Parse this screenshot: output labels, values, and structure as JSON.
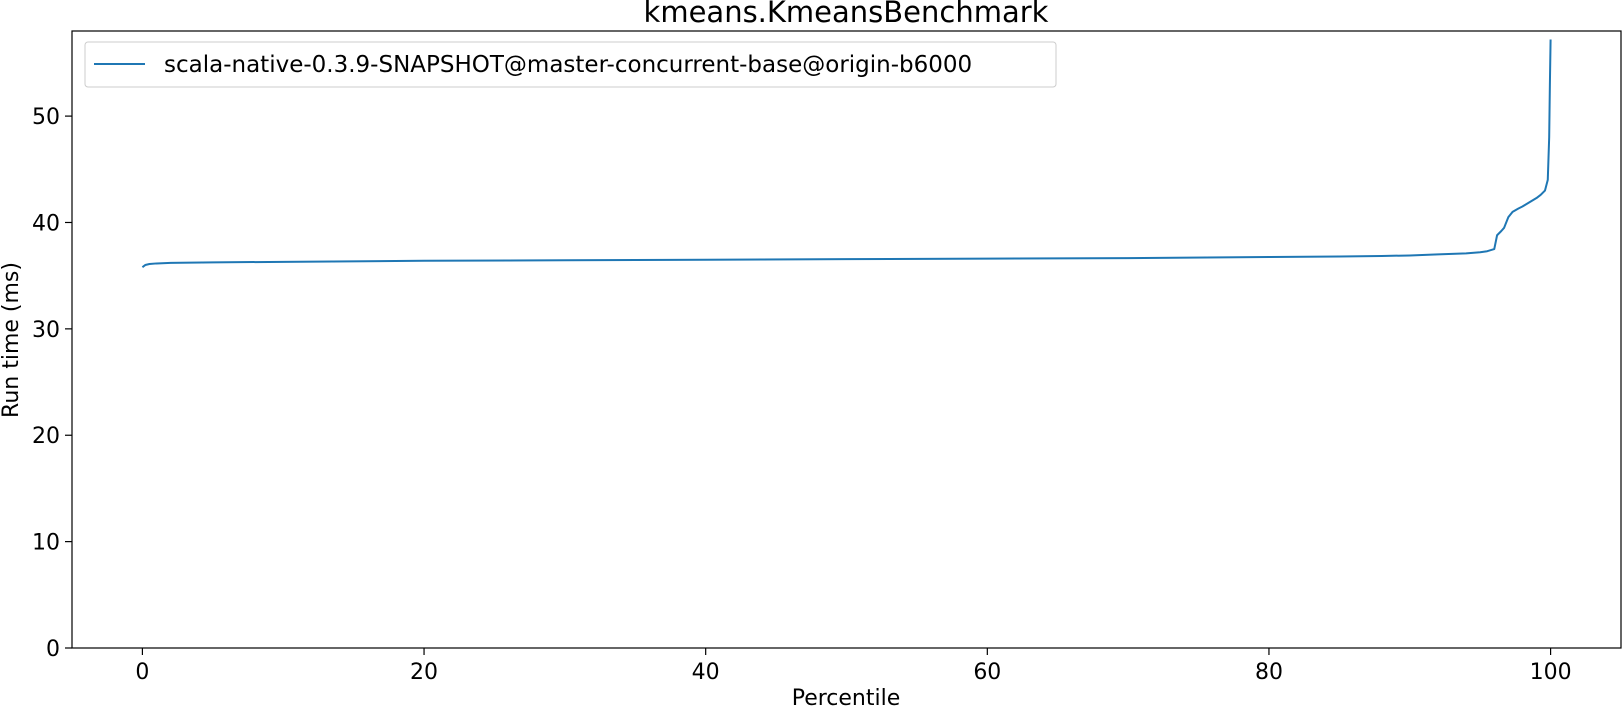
{
  "chart_data": {
    "type": "line",
    "title": "kmeans.KmeansBenchmark",
    "xlabel": "Percentile",
    "ylabel": "Run time (ms)",
    "xlim": [
      -5,
      105
    ],
    "ylim": [
      0,
      58
    ],
    "xticks": [
      0,
      20,
      40,
      60,
      80,
      100
    ],
    "yticks": [
      0,
      10,
      20,
      30,
      40,
      50
    ],
    "grid": false,
    "legend_position": "top-left",
    "series": [
      {
        "name": "scala-native-0.3.9-SNAPSHOT@master-concurrent-base@origin-b6000",
        "color": "#1f77b4",
        "x": [
          0,
          0.2,
          0.5,
          1,
          2,
          5,
          10,
          20,
          30,
          40,
          50,
          60,
          70,
          80,
          85,
          88,
          90,
          92,
          94,
          95,
          95.5,
          96,
          96.2,
          96.5,
          96.7,
          97,
          97.3,
          97.7,
          98,
          98.5,
          99,
          99.3,
          99.6,
          99.8,
          99.9,
          99.95,
          100
        ],
        "y": [
          35.8,
          36.0,
          36.1,
          36.15,
          36.2,
          36.25,
          36.3,
          36.4,
          36.45,
          36.5,
          36.55,
          36.6,
          36.65,
          36.75,
          36.8,
          36.85,
          36.9,
          37.0,
          37.1,
          37.2,
          37.3,
          37.5,
          38.8,
          39.2,
          39.5,
          40.5,
          41.0,
          41.3,
          41.5,
          41.9,
          42.3,
          42.6,
          43.0,
          44.0,
          48.0,
          53.0,
          57.2
        ]
      }
    ]
  }
}
